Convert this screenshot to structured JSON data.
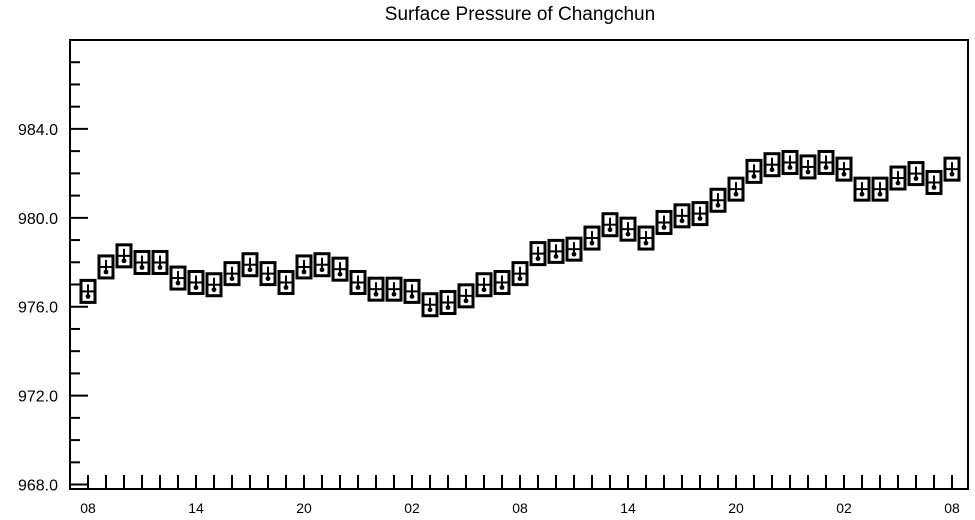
{
  "chart_data": {
    "type": "box",
    "title": "Surface Pressure of Changchun",
    "xlabel": "",
    "ylabel": "",
    "ylim": [
      967.8,
      988.0
    ],
    "y_ticks": [
      968.0,
      972.0,
      976.0,
      980.0,
      984.0
    ],
    "y_tick_labels": [
      "968.0",
      "972.0",
      "976.0",
      "980.0",
      "984.0"
    ],
    "x_tick_labels": [
      {
        "index": 0,
        "label": "08"
      },
      {
        "index": 6,
        "label": "14"
      },
      {
        "index": 12,
        "label": "20"
      },
      {
        "index": 18,
        "label": "02"
      },
      {
        "index": 24,
        "label": "08"
      },
      {
        "index": 30,
        "label": "14"
      },
      {
        "index": 36,
        "label": "20"
      },
      {
        "index": 42,
        "label": "02"
      },
      {
        "index": 48,
        "label": "08"
      }
    ],
    "grid": false,
    "series": [
      {
        "x": [
          0,
          1,
          2,
          3,
          4,
          5,
          6,
          7,
          8,
          9,
          10,
          11,
          12,
          13,
          14,
          15,
          16,
          17,
          18,
          19,
          20,
          21,
          22,
          23,
          24,
          25,
          26,
          27,
          28,
          29,
          30,
          31,
          32,
          33,
          34,
          35,
          36,
          37,
          38,
          39,
          40,
          41,
          42,
          43,
          44,
          45,
          46,
          47,
          48
        ],
        "values": [
          976.6,
          977.7,
          978.2,
          977.9,
          977.9,
          977.2,
          977.0,
          976.9,
          977.4,
          977.8,
          977.4,
          977.0,
          977.7,
          977.8,
          977.6,
          977.0,
          976.7,
          976.7,
          976.6,
          976.0,
          976.1,
          976.4,
          976.9,
          977.0,
          977.4,
          978.3,
          978.4,
          978.5,
          979.0,
          979.6,
          979.4,
          979.0,
          979.7,
          980.0,
          980.1,
          980.7,
          981.2,
          982.0,
          982.3,
          982.4,
          982.2,
          982.4,
          982.1,
          981.2,
          981.2,
          981.7,
          981.9,
          981.5,
          982.1
        ]
      }
    ]
  }
}
